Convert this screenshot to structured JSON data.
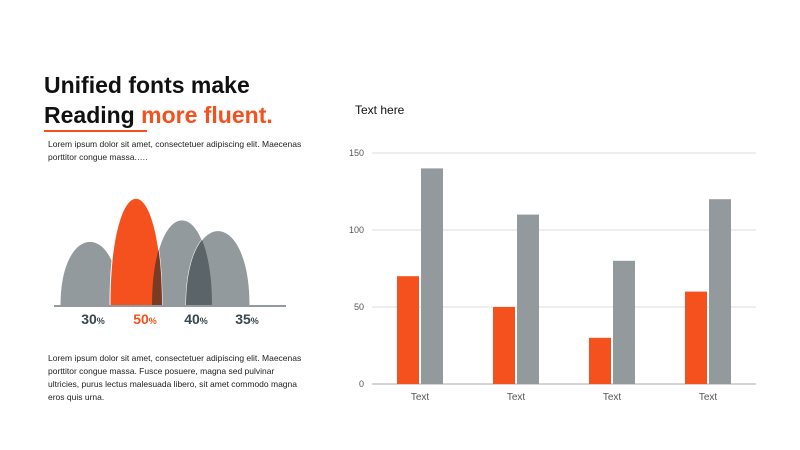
{
  "headline": {
    "line1": "Unified fonts make",
    "line2_plain": "Reading ",
    "line2_accent": "more fluent."
  },
  "paragraph_top": "Lorem ipsum dolor sit amet, consectetuer adipiscing elit. Maecenas porttitor congue massa.….",
  "paragraph_bottom": "Lorem ipsum dolor sit amet, consectetuer adipiscing elit. Maecenas porttitor congue massa. Fusce posuere, magna sed pulvinar ultricies, purus lectus malesuada libero, sit amet commodo magna eros quis urna.",
  "colors": {
    "accent": "#f4511e",
    "gray": "#939a9e",
    "dark": "#37474f"
  },
  "chart_data": [
    {
      "type": "area",
      "title": "",
      "categories": [
        "30",
        "50",
        "40",
        "35"
      ],
      "values": [
        30,
        50,
        40,
        35
      ],
      "unit": "%",
      "highlight_index": 1,
      "ylim": [
        0,
        50
      ]
    },
    {
      "type": "bar",
      "title": "Text here",
      "categories": [
        "Text",
        "Text",
        "Text",
        "Text"
      ],
      "series": [
        {
          "values": [
            70,
            50,
            30,
            60
          ],
          "color": "#f4511e"
        },
        {
          "values": [
            140,
            110,
            80,
            120
          ],
          "color": "#939a9e"
        }
      ],
      "ylim": [
        0,
        150
      ],
      "yticks": [
        0,
        50,
        100,
        150
      ],
      "grid": true
    }
  ]
}
